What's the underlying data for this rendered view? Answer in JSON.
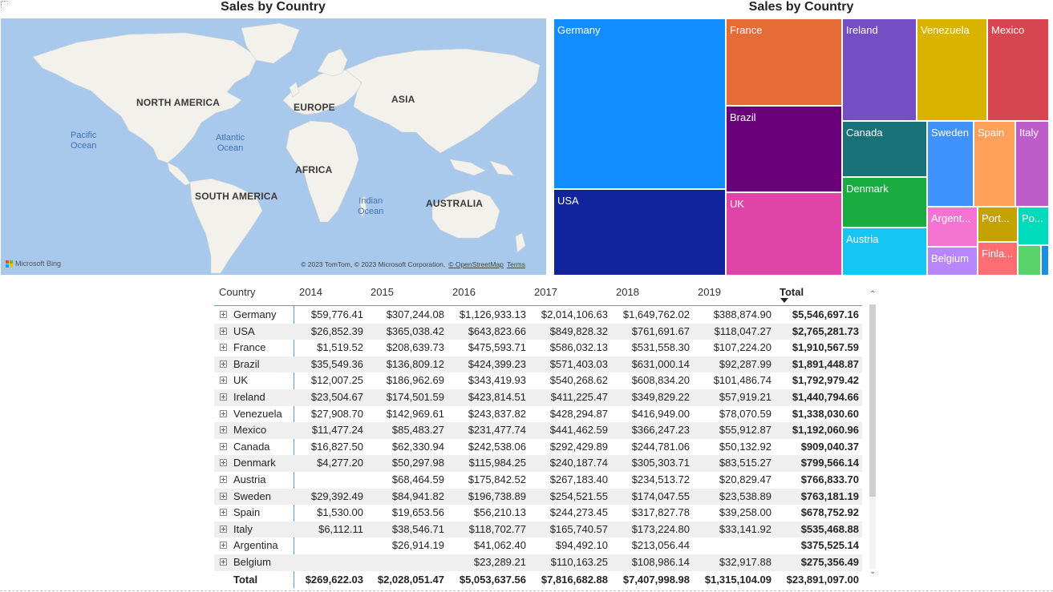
{
  "map": {
    "title": "Sales by Country",
    "continents": [
      "NORTH AMERICA",
      "EUROPE",
      "ASIA",
      "AFRICA",
      "SOUTH AMERICA",
      "AUSTRALIA"
    ],
    "oceans": [
      "Pacific\nOcean",
      "Atlantic\nOcean",
      "Indian\nOcean"
    ],
    "logo_text": "Microsoft Bing",
    "attribution": "© 2023 TomTom, © 2023 Microsoft Corporation,",
    "attribution_link": "© OpenStreetMap",
    "terms_link": "Terms",
    "colors": {
      "water": "#a8c8ec",
      "land": "#f3f1ec"
    }
  },
  "treemap": {
    "title": "Sales by Country",
    "items": [
      {
        "label": "Germany",
        "color": "#118dff"
      },
      {
        "label": "USA",
        "color": "#12239e"
      },
      {
        "label": "France",
        "color": "#e66c37"
      },
      {
        "label": "Brazil",
        "color": "#6b007b"
      },
      {
        "label": "UK",
        "color": "#e044a7"
      },
      {
        "label": "Ireland",
        "color": "#744ec2"
      },
      {
        "label": "Venezuela",
        "color": "#d9b300"
      },
      {
        "label": "Mexico",
        "color": "#d64550"
      },
      {
        "label": "Canada",
        "color": "#197278"
      },
      {
        "label": "Denmark",
        "color": "#1aab40"
      },
      {
        "label": "Austria",
        "color": "#15c6f4"
      },
      {
        "label": "Sweden",
        "color": "#4092ff"
      },
      {
        "label": "Spain",
        "color": "#ffa058"
      },
      {
        "label": "Italy",
        "color": "#be5dc9"
      },
      {
        "label": "Argent...",
        "color": "#f472d0"
      },
      {
        "label": "Port...",
        "color": "#c4a200"
      },
      {
        "label": "Po...",
        "color": "#00dbbc"
      },
      {
        "label": "Belgium",
        "color": "#b887ff"
      },
      {
        "label": "Finla...",
        "color": "#ff6e73"
      },
      {
        "label": "",
        "color": "#5ad46a"
      },
      {
        "label": "",
        "color": "#1b8fdf"
      }
    ]
  },
  "matrix": {
    "headers": [
      "Country",
      "2014",
      "2015",
      "2016",
      "2017",
      "2018",
      "2019",
      "Total"
    ],
    "rows": [
      [
        "Germany",
        "$59,776.41",
        "$307,244.08",
        "$1,126,933.13",
        "$2,014,106.63",
        "$1,649,762.02",
        "$388,874.90",
        "$5,546,697.16"
      ],
      [
        "USA",
        "$26,852.39",
        "$365,038.42",
        "$643,823.66",
        "$849,828.32",
        "$761,691.67",
        "$118,047.27",
        "$2,765,281.73"
      ],
      [
        "France",
        "$1,519.52",
        "$208,639.73",
        "$475,593.71",
        "$586,032.13",
        "$531,558.30",
        "$107,224.20",
        "$1,910,567.59"
      ],
      [
        "Brazil",
        "$35,549.36",
        "$136,809.12",
        "$424,399.23",
        "$571,403.03",
        "$631,000.14",
        "$92,287.99",
        "$1,891,448.87"
      ],
      [
        "UK",
        "$12,007.25",
        "$186,962.69",
        "$343,419.93",
        "$540,268.62",
        "$608,834.20",
        "$101,486.74",
        "$1,792,979.42"
      ],
      [
        "Ireland",
        "$23,504.67",
        "$174,501.59",
        "$423,814.51",
        "$411,225.47",
        "$349,829.22",
        "$57,919.21",
        "$1,440,794.66"
      ],
      [
        "Venezuela",
        "$27,908.70",
        "$142,969.61",
        "$243,837.82",
        "$428,294.87",
        "$416,949.00",
        "$78,070.59",
        "$1,338,030.60"
      ],
      [
        "Mexico",
        "$11,477.24",
        "$85,483.27",
        "$231,477.74",
        "$441,462.59",
        "$366,247.23",
        "$55,912.87",
        "$1,192,060.96"
      ],
      [
        "Canada",
        "$16,827.50",
        "$62,330.94",
        "$242,538.06",
        "$292,429.89",
        "$244,781.06",
        "$50,132.92",
        "$909,040.37"
      ],
      [
        "Denmark",
        "$4,277.20",
        "$50,297.98",
        "$115,984.25",
        "$240,187.74",
        "$305,303.71",
        "$83,515.27",
        "$799,566.14"
      ],
      [
        "Austria",
        "",
        "$68,464.59",
        "$175,842.52",
        "$267,183.40",
        "$234,513.72",
        "$20,829.47",
        "$766,833.70"
      ],
      [
        "Sweden",
        "$29,392.49",
        "$84,941.82",
        "$196,738.89",
        "$254,521.55",
        "$174,047.55",
        "$23,538.89",
        "$763,181.19"
      ],
      [
        "Spain",
        "$1,530.00",
        "$19,653.56",
        "$56,210.13",
        "$244,273.45",
        "$317,827.78",
        "$39,258.00",
        "$678,752.92"
      ],
      [
        "Italy",
        "$6,112.11",
        "$38,546.71",
        "$118,702.77",
        "$165,740.57",
        "$173,224.80",
        "$33,141.92",
        "$535,468.88"
      ],
      [
        "Argentina",
        "",
        "$26,914.19",
        "$41,062.40",
        "$94,492.10",
        "$213,056.44",
        "",
        "$375,525.14"
      ],
      [
        "Belgium",
        "",
        "",
        "$23,289.21",
        "$110,163.25",
        "$108,986.14",
        "$32,917.88",
        "$275,356.49"
      ]
    ],
    "total": [
      "Total",
      "$269,622.03",
      "$2,028,051.47",
      "$5,053,637.56",
      "$7,816,682.88",
      "$7,407,998.98",
      "$1,315,104.09",
      "$23,891,097.00"
    ]
  }
}
